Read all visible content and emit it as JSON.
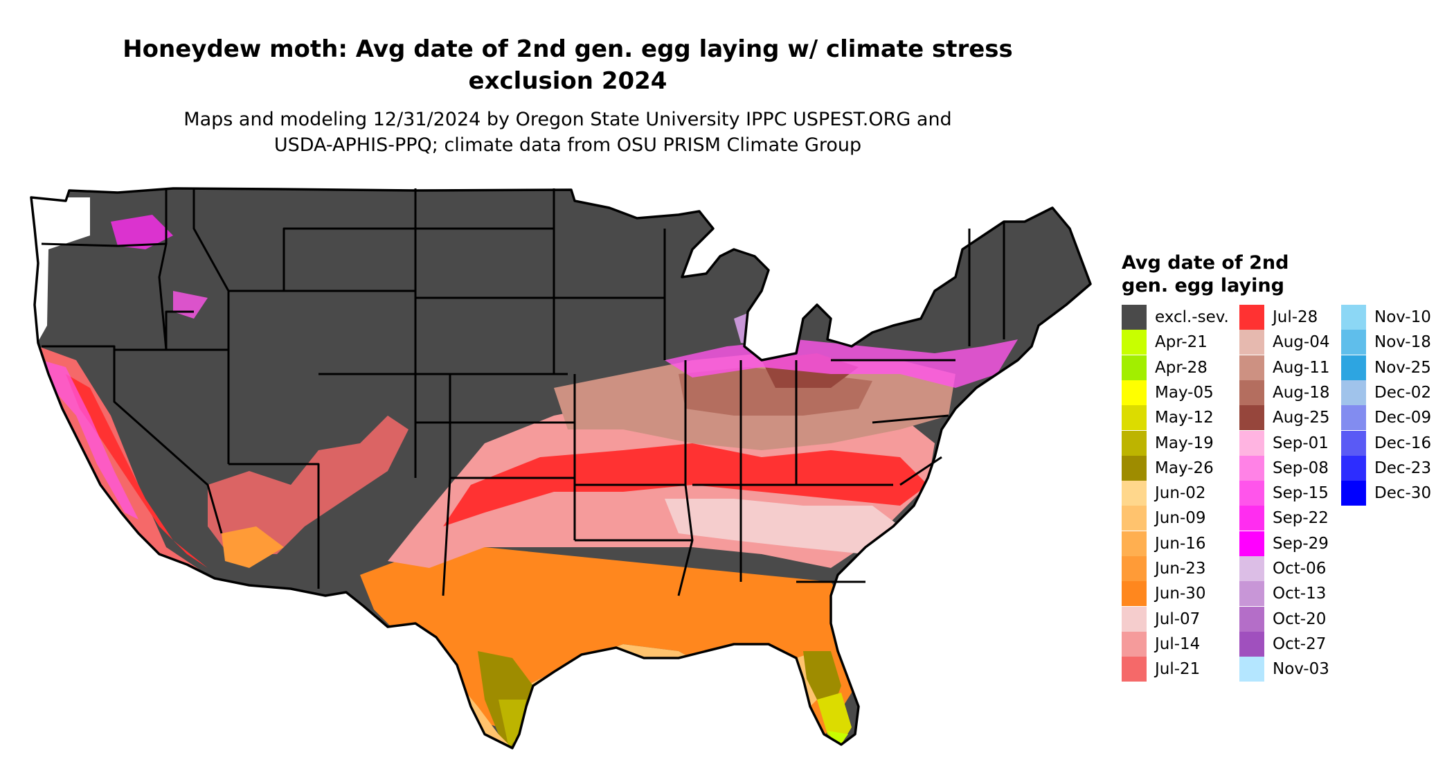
{
  "title": {
    "line1": "Honeydew moth: Avg date of 2nd gen. egg laying w/ climate stress",
    "line2": "exclusion 2024"
  },
  "subtitle": {
    "line1": "Maps and modeling 12/31/2024 by Oregon State University IPPC USPEST.ORG and",
    "line2": "USDA-APHIS-PPQ; climate data from OSU PRISM Climate Group"
  },
  "map": {
    "excluded_color": "#4a4a4a",
    "no_data_color": "#ffffff",
    "border_color": "#000000"
  },
  "legend": {
    "title_line1": "Avg date of 2nd",
    "title_line2": "gen. egg laying",
    "items": [
      {
        "label": "excl.-sev.",
        "color": "#4a4a4a"
      },
      {
        "label": "Apr-21",
        "color": "#c8ff00"
      },
      {
        "label": "Apr-28",
        "color": "#a2ee00"
      },
      {
        "label": "May-05",
        "color": "#ffff00"
      },
      {
        "label": "May-12",
        "color": "#dcdc00"
      },
      {
        "label": "May-19",
        "color": "#bdb400"
      },
      {
        "label": "May-26",
        "color": "#9e8c00"
      },
      {
        "label": "Jun-02",
        "color": "#ffd78c"
      },
      {
        "label": "Jun-09",
        "color": "#ffc36e"
      },
      {
        "label": "Jun-16",
        "color": "#ffaf50"
      },
      {
        "label": "Jun-23",
        "color": "#ff9b37"
      },
      {
        "label": "Jun-30",
        "color": "#ff871e"
      },
      {
        "label": "Jul-07",
        "color": "#f5cdcd"
      },
      {
        "label": "Jul-14",
        "color": "#f59b9b"
      },
      {
        "label": "Jul-21",
        "color": "#f56969"
      },
      {
        "label": "Jul-28",
        "color": "#ff3232"
      },
      {
        "label": "Aug-04",
        "color": "#e6b9af"
      },
      {
        "label": "Aug-11",
        "color": "#cd9182"
      },
      {
        "label": "Aug-18",
        "color": "#b46e5f"
      },
      {
        "label": "Aug-25",
        "color": "#96463c"
      },
      {
        "label": "Sep-01",
        "color": "#ffb4e1"
      },
      {
        "label": "Sep-08",
        "color": "#ff82e6"
      },
      {
        "label": "Sep-15",
        "color": "#ff55eb"
      },
      {
        "label": "Sep-22",
        "color": "#ff2df0"
      },
      {
        "label": "Sep-29",
        "color": "#ff00ff"
      },
      {
        "label": "Oct-06",
        "color": "#dcbee6"
      },
      {
        "label": "Oct-13",
        "color": "#c896d7"
      },
      {
        "label": "Oct-20",
        "color": "#b46ec8"
      },
      {
        "label": "Oct-27",
        "color": "#a050be"
      },
      {
        "label": "Nov-03",
        "color": "#b4e6ff"
      },
      {
        "label": "Nov-10",
        "color": "#8cd7f5"
      },
      {
        "label": "Nov-18",
        "color": "#5fbeeb"
      },
      {
        "label": "Nov-25",
        "color": "#2da5e1"
      },
      {
        "label": "Dec-02",
        "color": "#a0c3eb"
      },
      {
        "label": "Dec-09",
        "color": "#828cf0"
      },
      {
        "label": "Dec-16",
        "color": "#5a5af5"
      },
      {
        "label": "Dec-23",
        "color": "#2d2dff"
      },
      {
        "label": "Dec-30",
        "color": "#0000ff"
      }
    ]
  }
}
